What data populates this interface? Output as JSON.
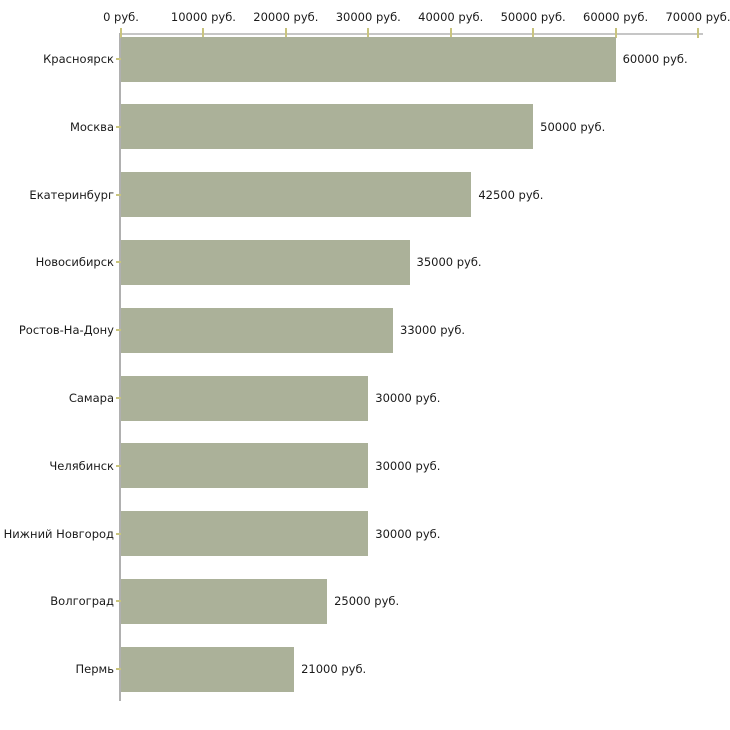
{
  "chart_data": {
    "type": "bar",
    "orientation": "horizontal",
    "unit_suffix": " руб.",
    "xlim": [
      0,
      70000
    ],
    "grid": false,
    "legend": false,
    "x_tick_values": [
      0,
      10000,
      20000,
      30000,
      40000,
      50000,
      60000,
      70000
    ],
    "x_tick_labels": [
      "0 руб.",
      "10000 руб.",
      "20000 руб.",
      "30000 руб.",
      "40000 руб.",
      "50000 руб.",
      "60000 руб.",
      "70000 руб."
    ],
    "categories": [
      "Красноярск",
      "Москва",
      "Екатеринбург",
      "Новосибирск",
      "Ростов-На-Дону",
      "Самара",
      "Челябинск",
      "Нижний Новгород",
      "Волгоград",
      "Пермь"
    ],
    "values": [
      60000,
      50000,
      42500,
      35000,
      33000,
      30000,
      30000,
      30000,
      25000,
      21000
    ],
    "bar_value_labels": [
      "60000 руб.",
      "50000 руб.",
      "42500 руб.",
      "35000 руб.",
      "33000 руб.",
      "30000 руб.",
      "30000 руб.",
      "30000 руб.",
      "25000 руб.",
      "21000 руб."
    ]
  },
  "colors": {
    "bar_fill": "#abb199",
    "axis_line_horizontal": "#c6c6c6",
    "axis_line_vertical": "#b0b0b0",
    "tick_mark": "#c9c47e",
    "label_text": "#1a1a1a",
    "background": "#ffffff"
  }
}
